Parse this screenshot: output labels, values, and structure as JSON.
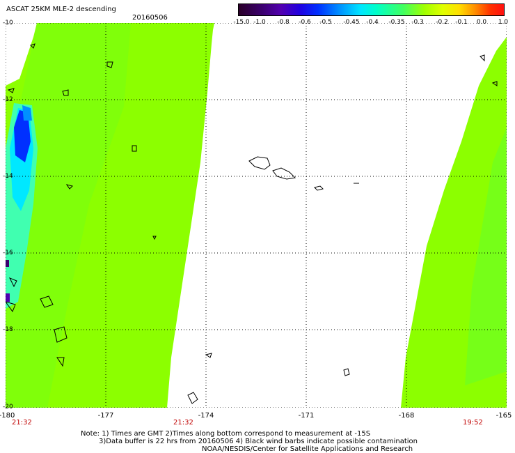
{
  "header": {
    "title": "ASCAT 25KM MLE-2 descending",
    "date": "20160506"
  },
  "colorbar": {
    "ticks": [
      "-15.0",
      "-1.0",
      "-0.8",
      "-0.6",
      "-0.5",
      "-0.45",
      "-0.4",
      "-0.35",
      "-0.3",
      "-0.2",
      "-0.1",
      "0.0",
      "1.0"
    ]
  },
  "axes": {
    "y_ticks": [
      "-10",
      "-12",
      "-14",
      "-16",
      "-18",
      "-20"
    ],
    "x_ticks": [
      "-180",
      "-177",
      "-174",
      "-171",
      "-168",
      "-165"
    ],
    "times": [
      "21:32",
      "21:32",
      "19:52"
    ]
  },
  "notes": {
    "line1": "Note: 1) Times are GMT 2)Times along bottom correspond to measurement at -15S",
    "line2": "3)Data buffer is 22 hrs from 20160506 4) Black wind barbs indicate possible contamination",
    "line3": "NOAA/NESDIS/Center for Satellite Applications and Research"
  },
  "colors": {
    "swath_green": "#8cff00",
    "swath_green_dark": "#5cff20",
    "cyan": "#00f0ff",
    "blue": "#0030ff",
    "grid": "#000000"
  }
}
